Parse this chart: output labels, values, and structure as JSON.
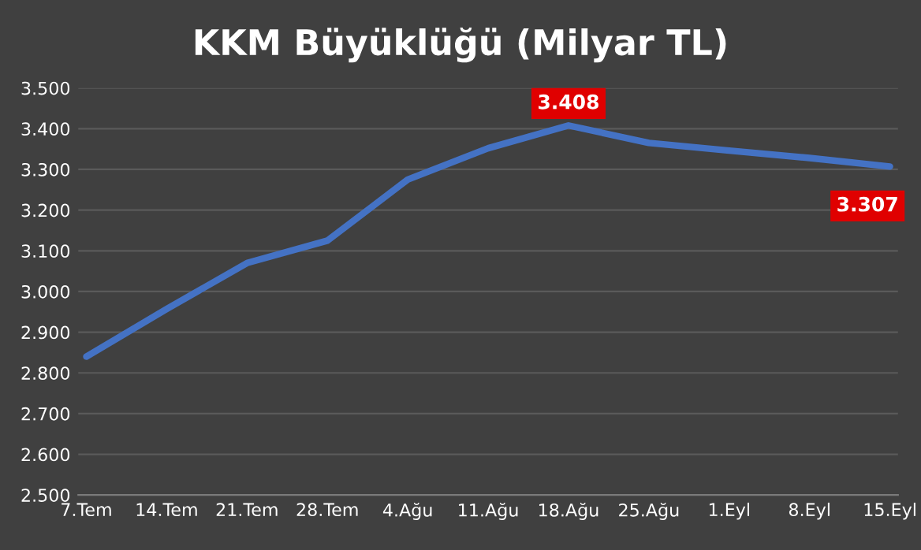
{
  "chart_data": {
    "type": "line",
    "title": "KKM Büyüklüğü (Milyar TL)",
    "categories": [
      "7.Tem",
      "14.Tem",
      "21.Tem",
      "28.Tem",
      "4.Ağu",
      "11.Ağu",
      "18.Ağu",
      "25.Ağu",
      "1.Eyl",
      "8.Eyl",
      "15.Eyl"
    ],
    "series": [
      {
        "color": "#4472c4",
        "values": [
          2840,
          2957,
          3070,
          3125,
          3275,
          3352,
          3408,
          3365,
          3346,
          3328,
          3307
        ],
        "value_labels": [
          null,
          null,
          null,
          null,
          null,
          null,
          "3.408",
          null,
          null,
          null,
          "3.307"
        ]
      }
    ],
    "ylim": [
      2500,
      3500
    ],
    "yticks": [
      {
        "value": 2500,
        "label": "2.500"
      },
      {
        "value": 2600,
        "label": "2.600"
      },
      {
        "value": 2700,
        "label": "2.700"
      },
      {
        "value": 2800,
        "label": "2.800"
      },
      {
        "value": 2900,
        "label": "2.900"
      },
      {
        "value": 3000,
        "label": "3.000"
      },
      {
        "value": 3100,
        "label": "3.100"
      },
      {
        "value": 3200,
        "label": "3.200"
      },
      {
        "value": 3300,
        "label": "3.300"
      },
      {
        "value": 3400,
        "label": "3.400"
      },
      {
        "value": 3500,
        "label": "3.500"
      }
    ],
    "grid": "y",
    "marker": "none",
    "line_style": "solid"
  }
}
